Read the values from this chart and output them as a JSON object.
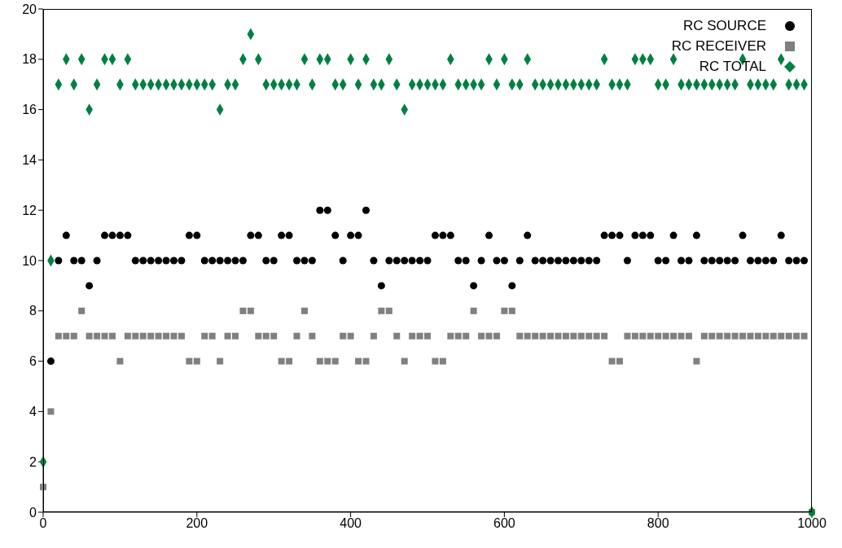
{
  "chart_data": {
    "type": "scatter",
    "x": [
      0,
      10,
      20,
      30,
      40,
      50,
      60,
      70,
      80,
      90,
      100,
      110,
      120,
      130,
      140,
      150,
      160,
      170,
      180,
      190,
      200,
      210,
      220,
      230,
      240,
      250,
      260,
      270,
      280,
      290,
      300,
      310,
      320,
      330,
      340,
      350,
      360,
      370,
      380,
      390,
      400,
      410,
      420,
      430,
      440,
      450,
      460,
      470,
      480,
      490,
      500,
      510,
      520,
      530,
      540,
      550,
      560,
      570,
      580,
      590,
      600,
      610,
      620,
      630,
      640,
      650,
      660,
      670,
      680,
      690,
      700,
      710,
      720,
      730,
      740,
      750,
      760,
      770,
      780,
      790,
      800,
      810,
      820,
      830,
      840,
      850,
      860,
      870,
      880,
      890,
      900,
      910,
      920,
      930,
      940,
      950,
      960,
      970,
      980,
      990,
      1000
    ],
    "series": [
      {
        "name": "RC SOURCE",
        "color": "#000000",
        "marker": "circle",
        "values": [
          null,
          6,
          10,
          11,
          10,
          10,
          9,
          10,
          11,
          11,
          11,
          11,
          10,
          10,
          10,
          10,
          10,
          10,
          10,
          11,
          11,
          10,
          10,
          10,
          10,
          10,
          10,
          11,
          11,
          10,
          10,
          11,
          11,
          10,
          10,
          10,
          12,
          12,
          11,
          10,
          11,
          11,
          12,
          10,
          9,
          10,
          10,
          10,
          10,
          10,
          10,
          11,
          11,
          11,
          10,
          10,
          9,
          10,
          11,
          10,
          10,
          9,
          10,
          11,
          10,
          10,
          10,
          10,
          10,
          10,
          10,
          10,
          10,
          11,
          11,
          11,
          10,
          11,
          11,
          11,
          10,
          10,
          11,
          10,
          10,
          11,
          10,
          10,
          10,
          10,
          10,
          11,
          10,
          10,
          10,
          10,
          11,
          10,
          10,
          10,
          null
        ]
      },
      {
        "name": "RC RECEIVER",
        "color": "#808080",
        "marker": "square",
        "values": [
          1,
          4,
          7,
          7,
          7,
          8,
          7,
          7,
          7,
          7,
          6,
          7,
          7,
          7,
          7,
          7,
          7,
          7,
          7,
          6,
          6,
          7,
          7,
          6,
          7,
          7,
          8,
          8,
          7,
          7,
          7,
          6,
          6,
          7,
          8,
          7,
          6,
          6,
          6,
          7,
          7,
          6,
          6,
          7,
          8,
          8,
          7,
          6,
          7,
          7,
          7,
          6,
          6,
          7,
          7,
          7,
          8,
          7,
          7,
          7,
          8,
          8,
          7,
          7,
          7,
          7,
          7,
          7,
          7,
          7,
          7,
          7,
          7,
          7,
          6,
          6,
          7,
          7,
          7,
          7,
          7,
          7,
          7,
          7,
          7,
          6,
          7,
          7,
          7,
          7,
          7,
          7,
          7,
          7,
          7,
          7,
          7,
          7,
          7,
          7,
          0
        ]
      },
      {
        "name": "RC TOTAL",
        "color": "#008040",
        "marker": "diamond",
        "values": [
          2,
          10,
          17,
          18,
          17,
          18,
          16,
          17,
          18,
          18,
          17,
          18,
          17,
          17,
          17,
          17,
          17,
          17,
          17,
          17,
          17,
          17,
          17,
          16,
          17,
          17,
          18,
          19,
          18,
          17,
          17,
          17,
          17,
          17,
          18,
          17,
          18,
          18,
          17,
          17,
          18,
          17,
          18,
          17,
          17,
          18,
          17,
          16,
          17,
          17,
          17,
          17,
          17,
          18,
          17,
          17,
          17,
          17,
          18,
          17,
          18,
          17,
          17,
          18,
          17,
          17,
          17,
          17,
          17,
          17,
          17,
          17,
          17,
          18,
          17,
          17,
          17,
          18,
          18,
          18,
          17,
          17,
          18,
          17,
          17,
          17,
          17,
          17,
          17,
          17,
          17,
          18,
          17,
          17,
          17,
          17,
          18,
          17,
          17,
          17,
          0
        ]
      }
    ],
    "xlim": [
      0,
      1000
    ],
    "xticks": [
      0,
      200,
      400,
      600,
      800,
      1000
    ],
    "ylim": [
      0,
      20
    ],
    "yticks": [
      0,
      2,
      4,
      6,
      8,
      10,
      12,
      14,
      16,
      18,
      20
    ],
    "grid": false,
    "legend": "top right"
  }
}
